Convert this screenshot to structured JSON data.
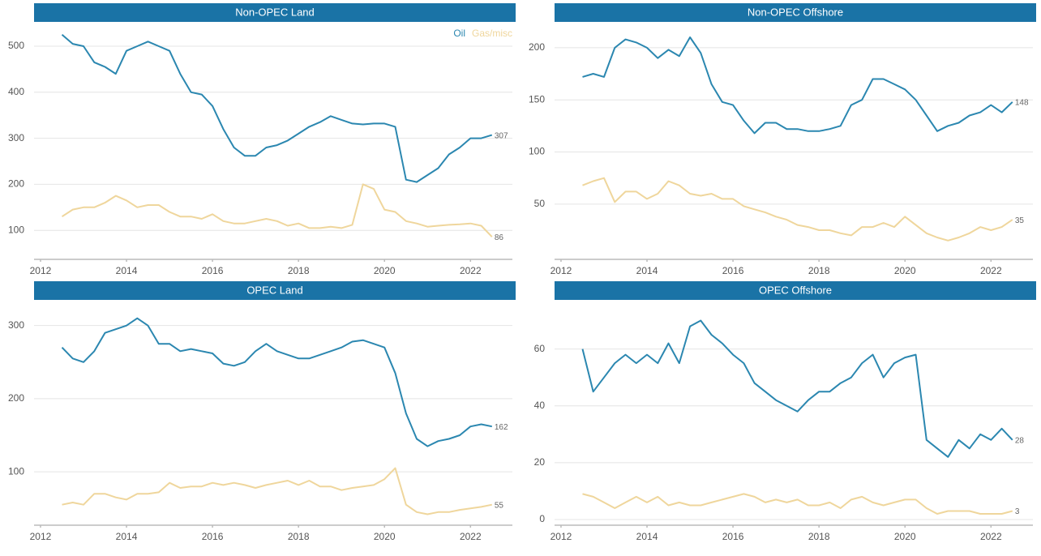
{
  "chart_data": [
    {
      "type": "line",
      "title": "Non-OPEC Land",
      "legend": "top-right",
      "x": [
        2012.5,
        2012.75,
        2013,
        2013.25,
        2013.5,
        2013.75,
        2014,
        2014.25,
        2014.5,
        2014.75,
        2015,
        2015.25,
        2015.5,
        2015.75,
        2016,
        2016.25,
        2016.5,
        2016.75,
        2017,
        2017.25,
        2017.5,
        2017.75,
        2018,
        2018.25,
        2018.5,
        2018.75,
        2019,
        2019.25,
        2019.5,
        2019.75,
        2020,
        2020.25,
        2020.5,
        2020.75,
        2021,
        2021.25,
        2021.5,
        2021.75,
        2022,
        2022.25,
        2022.5
      ],
      "series": [
        {
          "name": "Oil",
          "color": "#2b87b0",
          "values": [
            525,
            505,
            500,
            465,
            455,
            440,
            490,
            500,
            510,
            500,
            490,
            440,
            400,
            395,
            370,
            320,
            280,
            262,
            262,
            280,
            285,
            295,
            310,
            325,
            335,
            348,
            340,
            332,
            330,
            332,
            332,
            325,
            210,
            205,
            220,
            235,
            265,
            280,
            300,
            300,
            307
          ]
        },
        {
          "name": "Gas/misc",
          "color": "#efd69c",
          "values": [
            130,
            145,
            150,
            150,
            160,
            175,
            165,
            150,
            155,
            155,
            140,
            130,
            130,
            125,
            135,
            120,
            115,
            115,
            120,
            125,
            120,
            110,
            115,
            105,
            105,
            108,
            105,
            112,
            200,
            190,
            145,
            140,
            120,
            115,
            108,
            110,
            112,
            113,
            115,
            110,
            86
          ]
        }
      ],
      "xlim": [
        2011.85,
        2023.05
      ],
      "xticks": [
        2012,
        2014,
        2016,
        2018,
        2020,
        2022
      ],
      "ylim": [
        37,
        551
      ],
      "yticks": [
        100,
        200,
        300,
        400,
        500
      ],
      "grid": true
    },
    {
      "type": "line",
      "title": "Non-OPEC Offshore",
      "x": [
        2012.5,
        2012.75,
        2013,
        2013.25,
        2013.5,
        2013.75,
        2014,
        2014.25,
        2014.5,
        2014.75,
        2015,
        2015.25,
        2015.5,
        2015.75,
        2016,
        2016.25,
        2016.5,
        2016.75,
        2017,
        2017.25,
        2017.5,
        2017.75,
        2018,
        2018.25,
        2018.5,
        2018.75,
        2019,
        2019.25,
        2019.5,
        2019.75,
        2020,
        2020.25,
        2020.5,
        2020.75,
        2021,
        2021.25,
        2021.5,
        2021.75,
        2022,
        2022.25,
        2022.5
      ],
      "series": [
        {
          "color": "#2b87b0",
          "values": [
            172,
            175,
            172,
            200,
            208,
            205,
            200,
            190,
            198,
            192,
            210,
            195,
            165,
            148,
            145,
            130,
            118,
            128,
            128,
            122,
            122,
            120,
            120,
            122,
            125,
            145,
            150,
            170,
            170,
            165,
            160,
            150,
            135,
            120,
            125,
            128,
            135,
            138,
            145,
            138,
            148
          ]
        },
        {
          "color": "#efd69c",
          "values": [
            68,
            72,
            75,
            52,
            62,
            62,
            55,
            60,
            72,
            68,
            60,
            58,
            60,
            55,
            55,
            48,
            45,
            42,
            38,
            35,
            30,
            28,
            25,
            25,
            22,
            20,
            28,
            28,
            32,
            28,
            38,
            30,
            22,
            18,
            15,
            18,
            22,
            28,
            25,
            28,
            35
          ]
        }
      ],
      "xlim": [
        2011.85,
        2023.05
      ],
      "xticks": [
        2012,
        2014,
        2016,
        2018,
        2020,
        2022
      ],
      "ylim": [
        -3,
        224
      ],
      "yticks": [
        50,
        100,
        150,
        200
      ],
      "grid": true
    },
    {
      "type": "line",
      "title": "OPEC Land",
      "x": [
        2012.5,
        2012.75,
        2013,
        2013.25,
        2013.5,
        2013.75,
        2014,
        2014.25,
        2014.5,
        2014.75,
        2015,
        2015.25,
        2015.5,
        2015.75,
        2016,
        2016.25,
        2016.5,
        2016.75,
        2017,
        2017.25,
        2017.5,
        2017.75,
        2018,
        2018.25,
        2018.5,
        2018.75,
        2019,
        2019.25,
        2019.5,
        2019.75,
        2020,
        2020.25,
        2020.5,
        2020.75,
        2021,
        2021.25,
        2021.5,
        2021.75,
        2022,
        2022.25,
        2022.5
      ],
      "series": [
        {
          "color": "#2b87b0",
          "values": [
            270,
            255,
            250,
            265,
            290,
            295,
            300,
            310,
            300,
            275,
            275,
            265,
            268,
            265,
            262,
            248,
            245,
            250,
            265,
            275,
            265,
            260,
            255,
            255,
            260,
            265,
            270,
            278,
            280,
            275,
            270,
            235,
            180,
            145,
            135,
            142,
            145,
            150,
            162,
            165,
            162
          ]
        },
        {
          "color": "#efd69c",
          "values": [
            55,
            58,
            55,
            70,
            70,
            65,
            62,
            70,
            70,
            72,
            85,
            78,
            80,
            80,
            85,
            82,
            85,
            82,
            78,
            82,
            85,
            88,
            82,
            88,
            80,
            80,
            75,
            78,
            80,
            82,
            90,
            105,
            55,
            45,
            42,
            45,
            45,
            48,
            50,
            52,
            55
          ]
        }
      ],
      "xlim": [
        2011.85,
        2023.05
      ],
      "xticks": [
        2012,
        2014,
        2016,
        2018,
        2020,
        2022
      ],
      "ylim": [
        27,
        334
      ],
      "yticks": [
        100,
        200,
        300
      ],
      "grid": true
    },
    {
      "type": "line",
      "title": "OPEC Offshore",
      "x": [
        2012.5,
        2012.75,
        2013,
        2013.25,
        2013.5,
        2013.75,
        2014,
        2014.25,
        2014.5,
        2014.75,
        2015,
        2015.25,
        2015.5,
        2015.75,
        2016,
        2016.25,
        2016.5,
        2016.75,
        2017,
        2017.25,
        2017.5,
        2017.75,
        2018,
        2018.25,
        2018.5,
        2018.75,
        2019,
        2019.25,
        2019.5,
        2019.75,
        2020,
        2020.25,
        2020.5,
        2020.75,
        2021,
        2021.25,
        2021.5,
        2021.75,
        2022,
        2022.25,
        2022.5
      ],
      "series": [
        {
          "color": "#2b87b0",
          "values": [
            60,
            45,
            50,
            55,
            58,
            55,
            58,
            55,
            62,
            55,
            68,
            70,
            65,
            62,
            58,
            55,
            48,
            45,
            42,
            40,
            38,
            42,
            45,
            45,
            48,
            50,
            55,
            58,
            50,
            55,
            57,
            58,
            28,
            25,
            22,
            28,
            25,
            30,
            28,
            32,
            28
          ]
        },
        {
          "color": "#efd69c",
          "values": [
            9,
            8,
            6,
            4,
            6,
            8,
            6,
            8,
            5,
            6,
            5,
            5,
            6,
            7,
            8,
            9,
            8,
            6,
            7,
            6,
            7,
            5,
            5,
            6,
            4,
            7,
            8,
            6,
            5,
            6,
            7,
            7,
            4,
            2,
            3,
            3,
            3,
            2,
            2,
            2,
            3
          ]
        }
      ],
      "xlim": [
        2011.85,
        2023.05
      ],
      "xticks": [
        2012,
        2014,
        2016,
        2018,
        2020,
        2022
      ],
      "ylim": [
        -2,
        77
      ],
      "yticks": [
        0,
        20,
        40,
        60
      ],
      "grid": true
    }
  ]
}
